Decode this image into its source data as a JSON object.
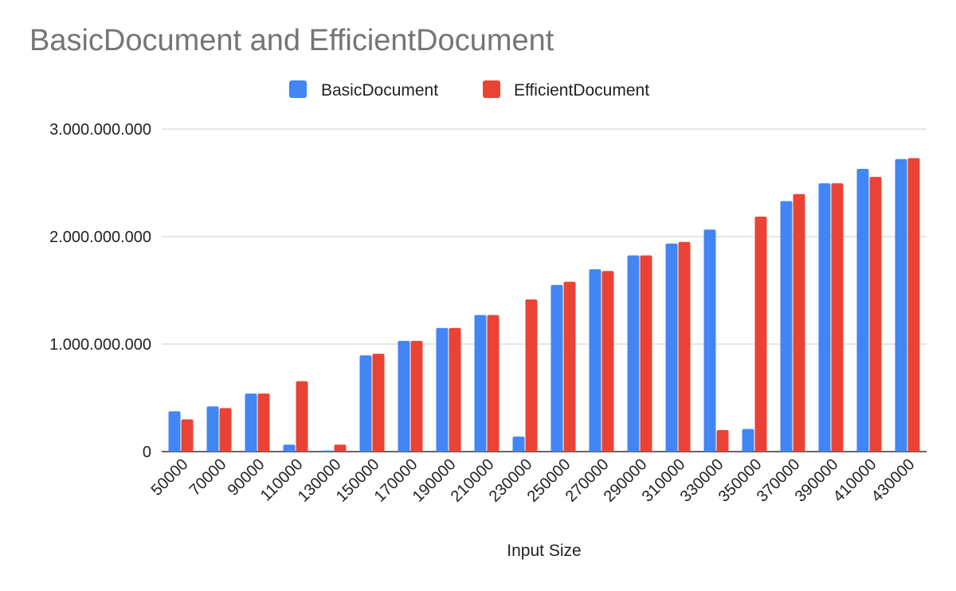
{
  "chart_data": {
    "type": "bar",
    "title": "BasicDocument and EfficientDocument",
    "xlabel": "Input Size",
    "ylabel": "",
    "ylim": [
      0,
      3000000000
    ],
    "y_ticks": [
      0,
      1000000000,
      2000000000,
      3000000000
    ],
    "y_tick_labels": [
      "0",
      "1.000.000.000",
      "2.000.000.000",
      "3.000.000.000"
    ],
    "grid": true,
    "legend_position": "top-center",
    "categories": [
      "50000",
      "70000",
      "90000",
      "110000",
      "130000",
      "150000",
      "170000",
      "190000",
      "210000",
      "230000",
      "250000",
      "270000",
      "290000",
      "310000",
      "330000",
      "350000",
      "370000",
      "390000",
      "410000",
      "430000"
    ],
    "series": [
      {
        "name": "BasicDocument",
        "color": "#4285f4",
        "values": [
          375000000,
          420000000,
          540000000,
          65000000,
          10000000,
          895000000,
          1030000000,
          1150000000,
          1270000000,
          140000000,
          1550000000,
          1695000000,
          1825000000,
          1935000000,
          2065000000,
          210000000,
          2330000000,
          2495000000,
          2630000000,
          2720000000
        ]
      },
      {
        "name": "EfficientDocument",
        "color": "#ea4335",
        "values": [
          300000000,
          405000000,
          540000000,
          655000000,
          65000000,
          910000000,
          1030000000,
          1150000000,
          1270000000,
          1415000000,
          1580000000,
          1680000000,
          1825000000,
          1950000000,
          200000000,
          2185000000,
          2395000000,
          2495000000,
          2555000000,
          2730000000
        ]
      }
    ]
  }
}
